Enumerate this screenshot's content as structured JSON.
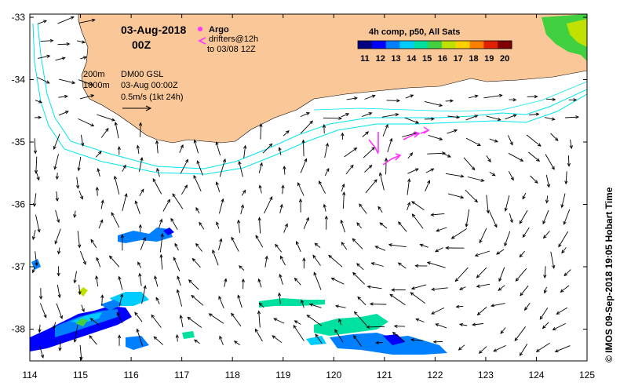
{
  "map": {
    "date": "03-Aug-2018",
    "time": "00Z",
    "argo_label": "Argo",
    "drifters_label": "drifters@12h",
    "drifters_range": "to 03/08 12Z",
    "isobath_200": "200m",
    "isobath_1000": "1000m",
    "product": "DM00 GSL",
    "product_time": "03-Aug 00:00Z",
    "velocity_scale": "0.5m/s (1kt 24h)",
    "credit": "© IMOS 09-Sep-2018 19:05 Hobart Time"
  },
  "colorbar": {
    "title": "4h comp, p50, All Sats",
    "ticks": [
      "11",
      "12",
      "13",
      "14",
      "15",
      "16",
      "17",
      "18",
      "19",
      "20"
    ],
    "colors": [
      "#000080",
      "#0000ff",
      "#0080ff",
      "#00ccff",
      "#00e0a0",
      "#40d040",
      "#c0e000",
      "#ffd000",
      "#ff8000",
      "#e02000",
      "#800000"
    ]
  },
  "axes": {
    "x_ticks": [
      "114",
      "115",
      "116",
      "117",
      "118",
      "119",
      "120",
      "121",
      "122",
      "123",
      "124",
      "125"
    ],
    "y_ticks": [
      "-33",
      "-34",
      "-35",
      "-36",
      "-37",
      "-38"
    ]
  },
  "colors": {
    "land": "#fac898",
    "isobath": "#00e5ee",
    "drifter": "#ff33ff",
    "frame": "#000000"
  }
}
